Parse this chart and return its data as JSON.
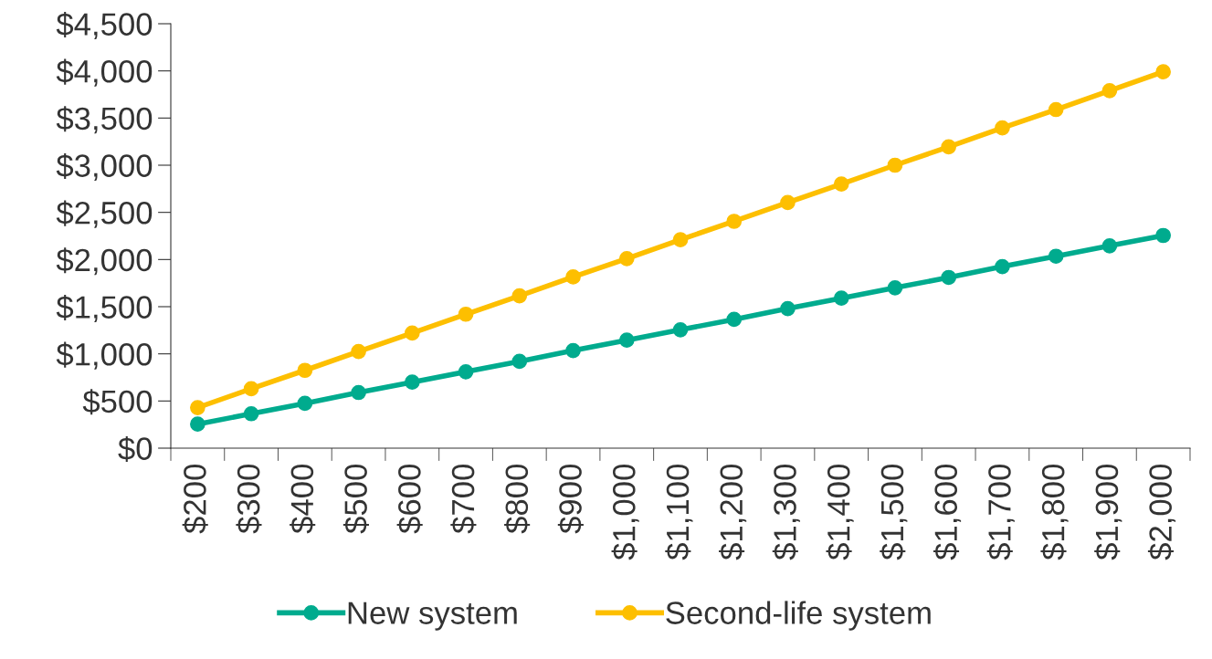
{
  "chart_data": {
    "type": "line",
    "categories": [
      "$200",
      "$300",
      "$400",
      "$500",
      "$600",
      "$700",
      "$800",
      "$900",
      "$1,000",
      "$1,100",
      "$1,200",
      "$1,300",
      "$1,400",
      "$1,500",
      "$1,600",
      "$1,700",
      "$1,800",
      "$1,900",
      "$2,000"
    ],
    "series": [
      {
        "name": "New system",
        "color": "#00ab8e",
        "values": [
          255,
          365,
          475,
          590,
          700,
          810,
          920,
          1035,
          1145,
          1255,
          1365,
          1480,
          1590,
          1700,
          1810,
          1925,
          2035,
          2145,
          2255
        ]
      },
      {
        "name": "Second-life system",
        "color": "#fdbf00",
        "values": [
          430,
          630,
          825,
          1025,
          1220,
          1420,
          1615,
          1815,
          2010,
          2210,
          2405,
          2605,
          2800,
          3000,
          3195,
          3395,
          3590,
          3790,
          3990
        ]
      }
    ],
    "ylim": [
      0,
      4500
    ],
    "yticks": [
      {
        "value": 0,
        "label": "$0"
      },
      {
        "value": 500,
        "label": "$500"
      },
      {
        "value": 1000,
        "label": "$1,000"
      },
      {
        "value": 1500,
        "label": "$1,500"
      },
      {
        "value": 2000,
        "label": "$2,000"
      },
      {
        "value": 2500,
        "label": "$2,500"
      },
      {
        "value": 3000,
        "label": "$3,000"
      },
      {
        "value": 3500,
        "label": "$3,500"
      },
      {
        "value": 4000,
        "label": "$4,000"
      },
      {
        "value": 4500,
        "label": "$4,500"
      }
    ],
    "grid": false,
    "legend": "bottom",
    "marker": "circle",
    "line_style": "solid"
  }
}
